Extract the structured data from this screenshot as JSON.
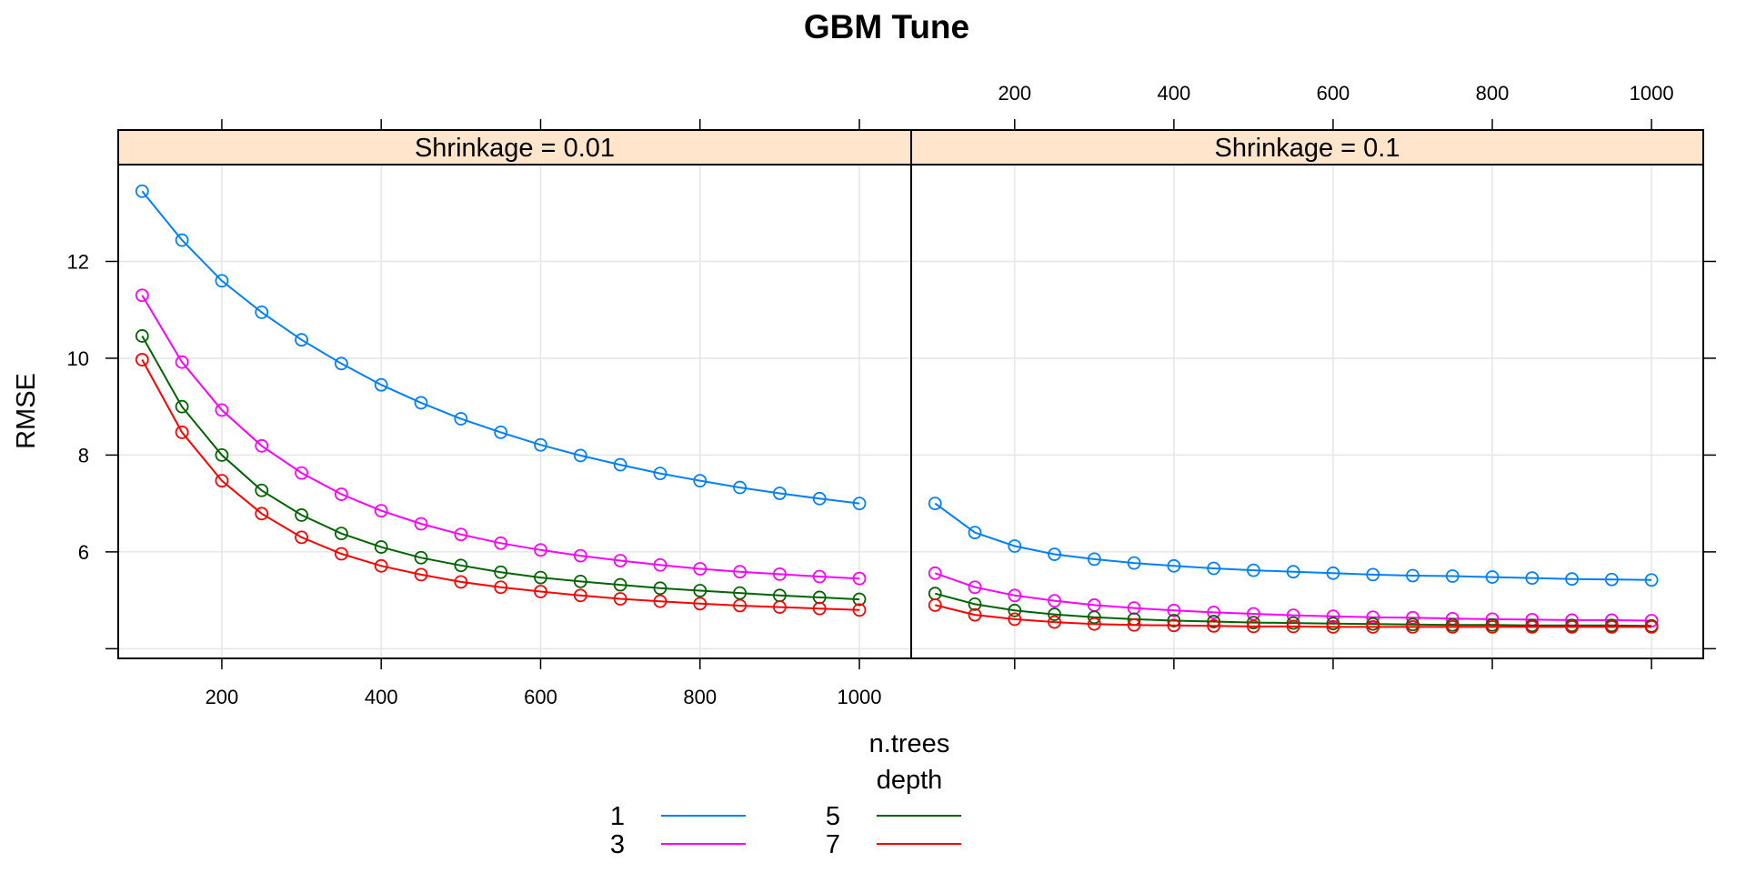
{
  "chart_data": {
    "type": "line",
    "title": "GBM Tune",
    "xlabel": "n.trees",
    "ylabel": "RMSE",
    "legend_title": "depth",
    "legend_placement": "bottom",
    "grid": true,
    "xlim": [
      70,
      1065
    ],
    "ylim": [
      3.8,
      14.0
    ],
    "x_ticks": [
      200,
      400,
      600,
      800,
      1000
    ],
    "y_ticks": [
      4,
      6,
      8,
      10,
      12
    ],
    "y_tick_labels_shown": [
      "6",
      "8",
      "10",
      "12"
    ],
    "strip_color": "#ffe5cc",
    "x": [
      100,
      150,
      200,
      250,
      300,
      350,
      400,
      450,
      500,
      550,
      600,
      650,
      700,
      750,
      800,
      850,
      900,
      950,
      1000
    ],
    "panels": [
      {
        "strip": "Shrinkage =  0.01",
        "series": [
          {
            "name": "1",
            "color": "#0080ff",
            "values": [
              13.45,
              12.44,
              11.6,
              10.95,
              10.38,
              9.89,
              9.45,
              9.08,
              8.75,
              8.47,
              8.21,
              7.99,
              7.8,
              7.62,
              7.47,
              7.33,
              7.21,
              7.1,
              7.0
            ]
          },
          {
            "name": "3",
            "color": "#ff00ff",
            "values": [
              11.3,
              9.92,
              8.93,
              8.19,
              7.63,
              7.19,
              6.85,
              6.58,
              6.36,
              6.18,
              6.04,
              5.92,
              5.82,
              5.73,
              5.65,
              5.59,
              5.54,
              5.49,
              5.45
            ]
          },
          {
            "name": "5",
            "color": "#006400",
            "values": [
              10.46,
              9.0,
              8.0,
              7.27,
              6.76,
              6.38,
              6.1,
              5.88,
              5.72,
              5.58,
              5.47,
              5.39,
              5.32,
              5.25,
              5.2,
              5.15,
              5.1,
              5.06,
              5.02
            ]
          },
          {
            "name": "7",
            "color": "#ff0000",
            "values": [
              9.97,
              8.47,
              7.47,
              6.79,
              6.3,
              5.96,
              5.71,
              5.53,
              5.38,
              5.27,
              5.18,
              5.1,
              5.03,
              4.98,
              4.93,
              4.89,
              4.86,
              4.83,
              4.8
            ]
          }
        ]
      },
      {
        "strip": "Shrinkage =  0.1",
        "series": [
          {
            "name": "1",
            "color": "#0080ff",
            "values": [
              7.0,
              6.4,
              6.12,
              5.95,
              5.85,
              5.77,
              5.71,
              5.66,
              5.62,
              5.59,
              5.56,
              5.53,
              5.51,
              5.5,
              5.48,
              5.46,
              5.44,
              5.43,
              5.42
            ]
          },
          {
            "name": "3",
            "color": "#ff00ff",
            "values": [
              5.56,
              5.27,
              5.1,
              4.99,
              4.9,
              4.84,
              4.79,
              4.75,
              4.72,
              4.69,
              4.67,
              4.65,
              4.64,
              4.62,
              4.61,
              4.6,
              4.59,
              4.59,
              4.58
            ]
          },
          {
            "name": "5",
            "color": "#006400",
            "values": [
              5.14,
              4.92,
              4.79,
              4.71,
              4.65,
              4.61,
              4.58,
              4.56,
              4.54,
              4.53,
              4.52,
              4.51,
              4.5,
              4.49,
              4.49,
              4.48,
              4.48,
              4.48,
              4.47
            ]
          },
          {
            "name": "7",
            "color": "#ff0000",
            "values": [
              4.9,
              4.7,
              4.61,
              4.55,
              4.51,
              4.49,
              4.48,
              4.47,
              4.46,
              4.46,
              4.45,
              4.45,
              4.45,
              4.45,
              4.45,
              4.45,
              4.45,
              4.45,
              4.45
            ]
          }
        ]
      }
    ]
  }
}
